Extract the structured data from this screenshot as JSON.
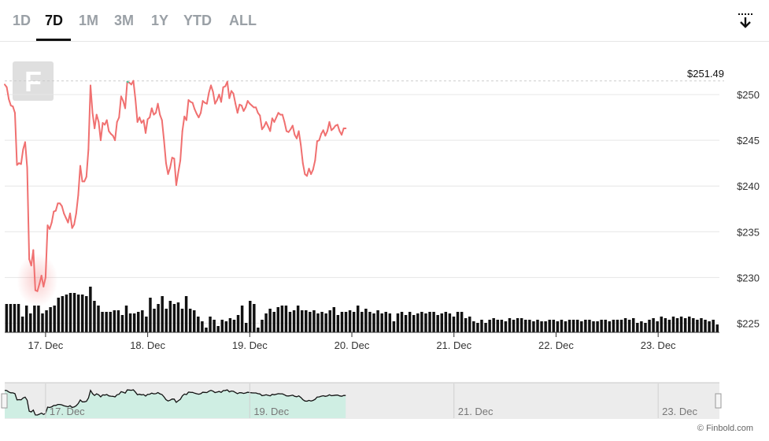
{
  "tabs": [
    {
      "label": "1D",
      "active": false
    },
    {
      "label": "7D",
      "active": true
    },
    {
      "label": "1M",
      "active": false
    },
    {
      "label": "3M",
      "active": false
    },
    {
      "label": "1Y",
      "active": false
    },
    {
      "label": "YTD",
      "active": false
    },
    {
      "label": "ALL",
      "active": false
    }
  ],
  "download_icon": "download-icon",
  "watermark_logo": "F",
  "credit": "© Finbold.com",
  "colors": {
    "line_down": "#f07070",
    "line_up": "#46c9a0",
    "volume": "#111111",
    "navigator_fill": "#cfeee3",
    "grid": "#e6e6e6",
    "axis_text": "#333333"
  },
  "chart_data": {
    "type": "line",
    "y_unit": "$",
    "ylim": [
      224,
      255
    ],
    "y_ticks": [
      225,
      230,
      235,
      240,
      245,
      250
    ],
    "y_tick_labels": [
      "$225",
      "$230",
      "$235",
      "$240",
      "$245",
      "$250"
    ],
    "x_tick_labels": [
      "17. Dec",
      "18. Dec",
      "19. Dec",
      "20. Dec",
      "21. Dec",
      "22. Dec",
      "23. Dec"
    ],
    "x_ticks": [
      1,
      2,
      3,
      4,
      5,
      6,
      7
    ],
    "xlim": [
      0.6,
      7.6
    ],
    "last_price_label": "$251.49",
    "last_price_value": 251.49,
    "grid": true,
    "price_series": [
      {
        "x": 0.6,
        "y": 251.1
      },
      {
        "x": 0.62,
        "y": 250.8
      },
      {
        "x": 0.64,
        "y": 249.5
      },
      {
        "x": 0.66,
        "y": 248.8
      },
      {
        "x": 0.68,
        "y": 248.7
      },
      {
        "x": 0.7,
        "y": 248.0
      },
      {
        "x": 0.72,
        "y": 242.3
      },
      {
        "x": 0.74,
        "y": 242.5
      },
      {
        "x": 0.76,
        "y": 242.4
      },
      {
        "x": 0.78,
        "y": 244.0
      },
      {
        "x": 0.8,
        "y": 244.8
      },
      {
        "x": 0.82,
        "y": 242.0
      },
      {
        "x": 0.84,
        "y": 232.0
      },
      {
        "x": 0.86,
        "y": 231.3
      },
      {
        "x": 0.88,
        "y": 233.0
      },
      {
        "x": 0.9,
        "y": 228.6
      },
      {
        "x": 0.92,
        "y": 228.5
      },
      {
        "x": 0.94,
        "y": 229.3
      },
      {
        "x": 0.96,
        "y": 230.2
      },
      {
        "x": 0.98,
        "y": 229.0
      },
      {
        "x": 1.0,
        "y": 230.0
      },
      {
        "x": 1.02,
        "y": 235.7
      },
      {
        "x": 1.04,
        "y": 235.3
      },
      {
        "x": 1.06,
        "y": 236.0
      },
      {
        "x": 1.08,
        "y": 237.2
      },
      {
        "x": 1.1,
        "y": 237.3
      },
      {
        "x": 1.12,
        "y": 238.1
      },
      {
        "x": 1.14,
        "y": 238.1
      },
      {
        "x": 1.16,
        "y": 237.8
      },
      {
        "x": 1.18,
        "y": 237.0
      },
      {
        "x": 1.2,
        "y": 236.5
      },
      {
        "x": 1.22,
        "y": 236.0
      },
      {
        "x": 1.24,
        "y": 237.0
      },
      {
        "x": 1.26,
        "y": 235.4
      },
      {
        "x": 1.28,
        "y": 235.8
      },
      {
        "x": 1.3,
        "y": 237.0
      },
      {
        "x": 1.32,
        "y": 239.0
      },
      {
        "x": 1.34,
        "y": 242.2
      },
      {
        "x": 1.36,
        "y": 240.5
      },
      {
        "x": 1.38,
        "y": 240.5
      },
      {
        "x": 1.4,
        "y": 241.0
      },
      {
        "x": 1.42,
        "y": 244.0
      },
      {
        "x": 1.44,
        "y": 251.0
      },
      {
        "x": 1.46,
        "y": 248.0
      },
      {
        "x": 1.48,
        "y": 246.3
      },
      {
        "x": 1.5,
        "y": 247.8
      },
      {
        "x": 1.52,
        "y": 247.0
      },
      {
        "x": 1.54,
        "y": 245.0
      },
      {
        "x": 1.56,
        "y": 246.9
      },
      {
        "x": 1.58,
        "y": 246.7
      },
      {
        "x": 1.6,
        "y": 247.2
      },
      {
        "x": 1.62,
        "y": 246.0
      },
      {
        "x": 1.64,
        "y": 245.7
      },
      {
        "x": 1.66,
        "y": 245.5
      },
      {
        "x": 1.68,
        "y": 245.0
      },
      {
        "x": 1.7,
        "y": 247.0
      },
      {
        "x": 1.72,
        "y": 247.5
      },
      {
        "x": 1.74,
        "y": 249.8
      },
      {
        "x": 1.76,
        "y": 249.3
      },
      {
        "x": 1.78,
        "y": 248.5
      },
      {
        "x": 1.8,
        "y": 251.4
      },
      {
        "x": 1.82,
        "y": 251.3
      },
      {
        "x": 1.84,
        "y": 251.1
      },
      {
        "x": 1.86,
        "y": 251.5
      },
      {
        "x": 1.88,
        "y": 249.5
      },
      {
        "x": 1.9,
        "y": 247.0
      },
      {
        "x": 1.92,
        "y": 247.5
      },
      {
        "x": 1.94,
        "y": 246.9
      },
      {
        "x": 1.96,
        "y": 247.2
      },
      {
        "x": 1.98,
        "y": 245.8
      },
      {
        "x": 2.0,
        "y": 247.3
      },
      {
        "x": 2.02,
        "y": 247.5
      },
      {
        "x": 2.04,
        "y": 248.5
      },
      {
        "x": 2.06,
        "y": 247.8
      },
      {
        "x": 2.08,
        "y": 248.0
      },
      {
        "x": 2.1,
        "y": 249.0
      },
      {
        "x": 2.12,
        "y": 247.8
      },
      {
        "x": 2.14,
        "y": 247.2
      },
      {
        "x": 2.16,
        "y": 245.0
      },
      {
        "x": 2.18,
        "y": 242.5
      },
      {
        "x": 2.2,
        "y": 241.3
      },
      {
        "x": 2.22,
        "y": 242.0
      },
      {
        "x": 2.24,
        "y": 243.1
      },
      {
        "x": 2.26,
        "y": 243.0
      },
      {
        "x": 2.28,
        "y": 240.1
      },
      {
        "x": 2.3,
        "y": 241.5
      },
      {
        "x": 2.32,
        "y": 242.8
      },
      {
        "x": 2.34,
        "y": 246.0
      },
      {
        "x": 2.36,
        "y": 247.6
      },
      {
        "x": 2.38,
        "y": 247.2
      },
      {
        "x": 2.4,
        "y": 249.4
      },
      {
        "x": 2.42,
        "y": 249.2
      },
      {
        "x": 2.44,
        "y": 249.1
      },
      {
        "x": 2.46,
        "y": 248.4
      },
      {
        "x": 2.48,
        "y": 247.9
      },
      {
        "x": 2.5,
        "y": 247.5
      },
      {
        "x": 2.52,
        "y": 248.0
      },
      {
        "x": 2.54,
        "y": 249.3
      },
      {
        "x": 2.56,
        "y": 249.1
      },
      {
        "x": 2.58,
        "y": 249.0
      },
      {
        "x": 2.6,
        "y": 250.2
      },
      {
        "x": 2.62,
        "y": 251.0
      },
      {
        "x": 2.64,
        "y": 250.3
      },
      {
        "x": 2.66,
        "y": 249.0
      },
      {
        "x": 2.68,
        "y": 249.4
      },
      {
        "x": 2.7,
        "y": 250.0
      },
      {
        "x": 2.72,
        "y": 249.2
      },
      {
        "x": 2.74,
        "y": 250.8
      },
      {
        "x": 2.76,
        "y": 250.9
      },
      {
        "x": 2.78,
        "y": 251.4
      },
      {
        "x": 2.8,
        "y": 249.6
      },
      {
        "x": 2.82,
        "y": 250.4
      },
      {
        "x": 2.84,
        "y": 250.1
      },
      {
        "x": 2.86,
        "y": 249.0
      },
      {
        "x": 2.88,
        "y": 248.0
      },
      {
        "x": 2.9,
        "y": 248.9
      },
      {
        "x": 2.92,
        "y": 248.8
      },
      {
        "x": 2.94,
        "y": 248.2
      },
      {
        "x": 2.96,
        "y": 248.6
      },
      {
        "x": 2.98,
        "y": 249.3
      },
      {
        "x": 3.0,
        "y": 249.0
      },
      {
        "x": 3.02,
        "y": 248.8
      },
      {
        "x": 3.04,
        "y": 248.6
      },
      {
        "x": 3.06,
        "y": 248.6
      },
      {
        "x": 3.08,
        "y": 248.0
      },
      {
        "x": 3.1,
        "y": 247.7
      },
      {
        "x": 3.12,
        "y": 246.2
      },
      {
        "x": 3.14,
        "y": 246.5
      },
      {
        "x": 3.16,
        "y": 247.0
      },
      {
        "x": 3.18,
        "y": 246.5
      },
      {
        "x": 3.2,
        "y": 246.0
      },
      {
        "x": 3.22,
        "y": 247.4
      },
      {
        "x": 3.24,
        "y": 247.0
      },
      {
        "x": 3.26,
        "y": 247.5
      },
      {
        "x": 3.28,
        "y": 248.0
      },
      {
        "x": 3.3,
        "y": 247.8
      },
      {
        "x": 3.32,
        "y": 247.8
      },
      {
        "x": 3.34,
        "y": 247.0
      },
      {
        "x": 3.36,
        "y": 246.0
      },
      {
        "x": 3.38,
        "y": 245.9
      },
      {
        "x": 3.4,
        "y": 246.2
      },
      {
        "x": 3.42,
        "y": 246.6
      },
      {
        "x": 3.44,
        "y": 245.6
      },
      {
        "x": 3.46,
        "y": 245.2
      },
      {
        "x": 3.48,
        "y": 246.0
      },
      {
        "x": 3.5,
        "y": 244.5
      },
      {
        "x": 3.52,
        "y": 242.5
      },
      {
        "x": 3.54,
        "y": 241.3
      },
      {
        "x": 3.56,
        "y": 241.1
      },
      {
        "x": 3.58,
        "y": 241.9
      },
      {
        "x": 3.6,
        "y": 241.3
      },
      {
        "x": 3.62,
        "y": 241.8
      },
      {
        "x": 3.64,
        "y": 242.8
      },
      {
        "x": 3.66,
        "y": 244.9
      },
      {
        "x": 3.68,
        "y": 245.0
      },
      {
        "x": 3.7,
        "y": 245.7
      },
      {
        "x": 3.72,
        "y": 246.1
      },
      {
        "x": 3.74,
        "y": 245.5
      },
      {
        "x": 3.76,
        "y": 246.0
      },
      {
        "x": 3.78,
        "y": 247.0
      },
      {
        "x": 3.8,
        "y": 246.1
      },
      {
        "x": 3.82,
        "y": 246.3
      },
      {
        "x": 3.84,
        "y": 246.6
      },
      {
        "x": 3.86,
        "y": 246.7
      },
      {
        "x": 3.88,
        "y": 246.0
      },
      {
        "x": 3.9,
        "y": 245.6
      },
      {
        "x": 3.92,
        "y": 246.3
      },
      {
        "x": 3.94,
        "y": 246.3
      }
    ],
    "volume": [
      36,
      36,
      36,
      36,
      20,
      34,
      24,
      34,
      34,
      24,
      28,
      32,
      34,
      44,
      46,
      48,
      50,
      50,
      48,
      48,
      46,
      58,
      40,
      34,
      26,
      26,
      26,
      28,
      28,
      22,
      34,
      24,
      24,
      26,
      28,
      20,
      44,
      30,
      36,
      46,
      30,
      40,
      36,
      38,
      30,
      46,
      30,
      28,
      20,
      14,
      6,
      20,
      16,
      8,
      16,
      14,
      18,
      16,
      22,
      34,
      12,
      40,
      36,
      6,
      16,
      24,
      30,
      26,
      32,
      34,
      34,
      26,
      28,
      34,
      28,
      28,
      26,
      28,
      24,
      26,
      24,
      28,
      32,
      22,
      26,
      26,
      28,
      26,
      34,
      26,
      30,
      26,
      24,
      28,
      24,
      26,
      24,
      14,
      24,
      26,
      22,
      26,
      22,
      24,
      26,
      24,
      26,
      26,
      22,
      24,
      26,
      24,
      20,
      26,
      26,
      18,
      20,
      14,
      12,
      16,
      12,
      16,
      18,
      16,
      16,
      14,
      18,
      16,
      18,
      18,
      16,
      16,
      14,
      16,
      14,
      14,
      16,
      16,
      14,
      16,
      14,
      16,
      16,
      16,
      14,
      16,
      16,
      14,
      14,
      16,
      16,
      14,
      16,
      16,
      16,
      18,
      16,
      18,
      12,
      14,
      12,
      16,
      18,
      14,
      20,
      18,
      16,
      20,
      18,
      20,
      18,
      20,
      18,
      16,
      18,
      16,
      14,
      16,
      10
    ],
    "navigator_labels": [
      "17. Dec",
      "19. Dec",
      "21. Dec",
      "23. Dec"
    ]
  }
}
